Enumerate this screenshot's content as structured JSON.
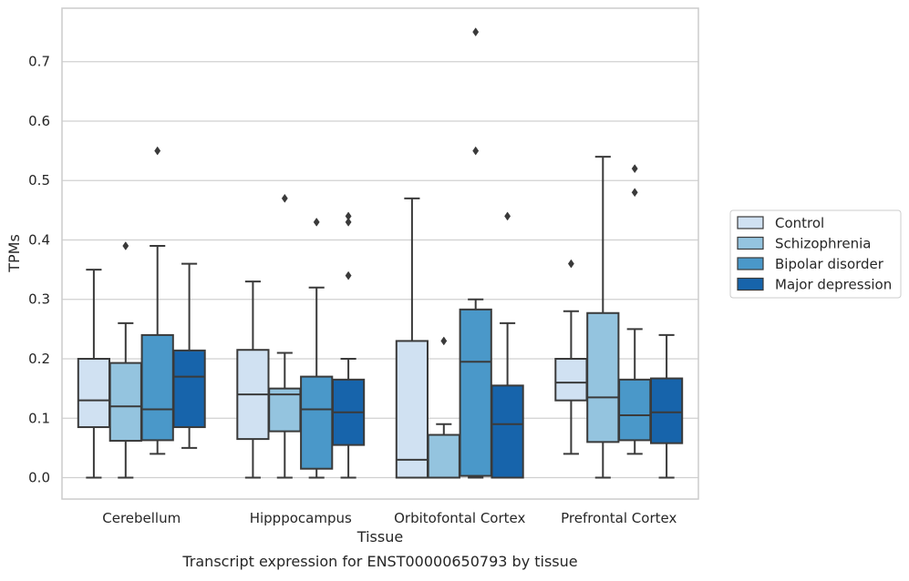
{
  "chart_data": {
    "type": "box",
    "caption": "Transcript expression for ENST00000650793 by tissue",
    "xlabel": "Tissue",
    "ylabel": "TPMs",
    "ylim": [
      -0.036,
      0.79
    ],
    "yticks": [
      0.0,
      0.1,
      0.2,
      0.3,
      0.4,
      0.5,
      0.6,
      0.7
    ],
    "ytick_labels": [
      "0.0",
      "0.1",
      "0.2",
      "0.3",
      "0.4",
      "0.5",
      "0.6",
      "0.7"
    ],
    "grid": true,
    "legend_position": "right",
    "categories": [
      "Cerebellum",
      "Hipppocampus",
      "Orbitofontal Cortex",
      "Prefrontal Cortex"
    ],
    "series": [
      {
        "name": "Control",
        "color": "#d0e1f2",
        "boxes": [
          {
            "whislo": 0.0,
            "q1": 0.085,
            "median": 0.13,
            "q3": 0.2,
            "whishi": 0.35,
            "fliers": []
          },
          {
            "whislo": 0.0,
            "q1": 0.065,
            "median": 0.14,
            "q3": 0.215,
            "whishi": 0.33,
            "fliers": []
          },
          {
            "whislo": 0.0,
            "q1": 0.0,
            "median": 0.03,
            "q3": 0.23,
            "whishi": 0.47,
            "fliers": []
          },
          {
            "whislo": 0.04,
            "q1": 0.13,
            "median": 0.16,
            "q3": 0.2,
            "whishi": 0.28,
            "fliers": [
              0.36
            ]
          }
        ]
      },
      {
        "name": "Schizophrenia",
        "color": "#94c4df",
        "boxes": [
          {
            "whislo": 0.0,
            "q1": 0.062,
            "median": 0.12,
            "q3": 0.193,
            "whishi": 0.26,
            "fliers": [
              0.39
            ]
          },
          {
            "whislo": 0.0,
            "q1": 0.078,
            "median": 0.14,
            "q3": 0.15,
            "whishi": 0.21,
            "fliers": [
              0.47
            ]
          },
          {
            "whislo": 0.0,
            "q1": 0.0,
            "median": 0.0,
            "q3": 0.072,
            "whishi": 0.09,
            "fliers": [
              0.23
            ]
          },
          {
            "whislo": 0.0,
            "q1": 0.06,
            "median": 0.135,
            "q3": 0.277,
            "whishi": 0.54,
            "fliers": []
          }
        ]
      },
      {
        "name": "Bipolar disorder",
        "color": "#4a98c9",
        "boxes": [
          {
            "whislo": 0.04,
            "q1": 0.063,
            "median": 0.115,
            "q3": 0.24,
            "whishi": 0.39,
            "fliers": [
              0.55
            ]
          },
          {
            "whislo": 0.0,
            "q1": 0.015,
            "median": 0.115,
            "q3": 0.17,
            "whishi": 0.32,
            "fliers": [
              0.43
            ]
          },
          {
            "whislo": 0.0,
            "q1": 0.003,
            "median": 0.195,
            "q3": 0.283,
            "whishi": 0.3,
            "fliers": [
              0.55,
              0.75
            ]
          },
          {
            "whislo": 0.04,
            "q1": 0.063,
            "median": 0.105,
            "q3": 0.165,
            "whishi": 0.25,
            "fliers": [
              0.48,
              0.52
            ]
          }
        ]
      },
      {
        "name": "Major depression",
        "color": "#1764ab",
        "boxes": [
          {
            "whislo": 0.05,
            "q1": 0.085,
            "median": 0.17,
            "q3": 0.214,
            "whishi": 0.36,
            "fliers": []
          },
          {
            "whislo": 0.0,
            "q1": 0.055,
            "median": 0.11,
            "q3": 0.165,
            "whishi": 0.2,
            "fliers": [
              0.34,
              0.43,
              0.44
            ]
          },
          {
            "whislo": 0.0,
            "q1": 0.0,
            "median": 0.09,
            "q3": 0.155,
            "whishi": 0.26,
            "fliers": [
              0.44
            ]
          },
          {
            "whislo": 0.0,
            "q1": 0.058,
            "median": 0.11,
            "q3": 0.167,
            "whishi": 0.24,
            "fliers": []
          }
        ]
      }
    ]
  }
}
